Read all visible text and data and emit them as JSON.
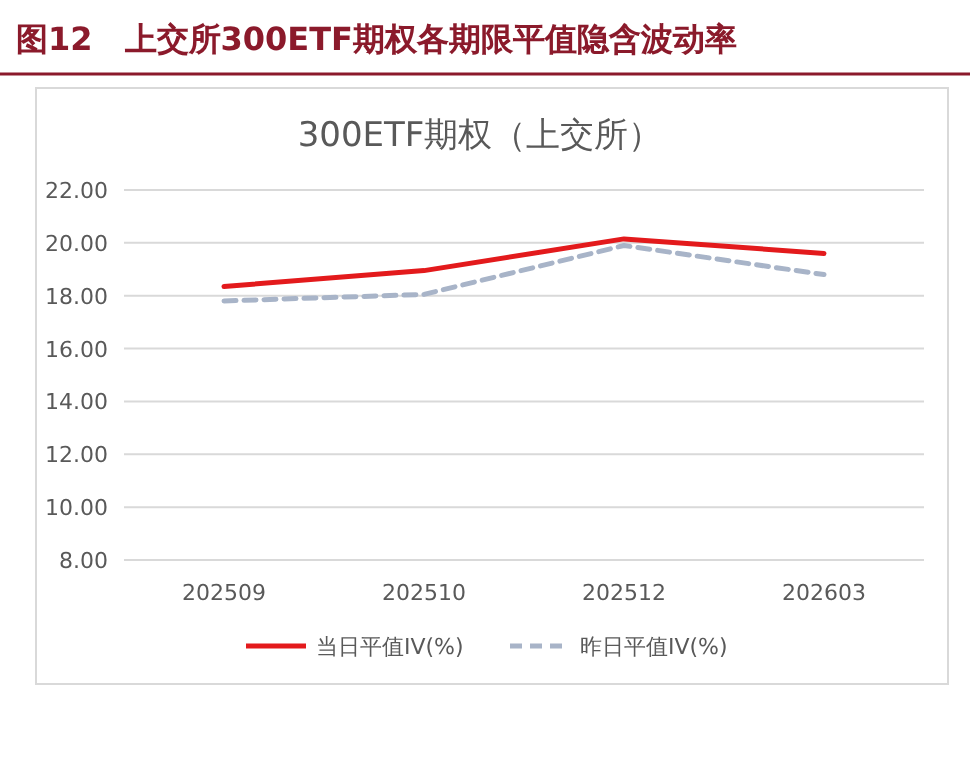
{
  "chart_data": {
    "type": "line",
    "title": "图12　上交所300ETF期权各期限平值隐含波动率",
    "subtitle": "300ETF期权（上交所）",
    "categories": [
      "202509",
      "202510",
      "202512",
      "202603"
    ],
    "series": [
      {
        "name": "当日平值IV(%)",
        "color": "#e31a1c",
        "values": [
          18.35,
          18.95,
          20.15,
          19.6
        ],
        "line_style": "solid"
      },
      {
        "name": "昨日平值IV(%)",
        "color": "#a8b4c8",
        "values": [
          17.8,
          18.05,
          19.9,
          18.8
        ],
        "line_style": "dashed"
      }
    ],
    "ylim": [
      8,
      22
    ],
    "yticks": [
      {
        "value": 8,
        "label": "8.00"
      },
      {
        "value": 10,
        "label": "10.00"
      },
      {
        "value": 12,
        "label": "12.00"
      },
      {
        "value": 14,
        "label": "14.00"
      },
      {
        "value": 16,
        "label": "16.00"
      },
      {
        "value": 18,
        "label": "18.00"
      },
      {
        "value": 20,
        "label": "20.00"
      },
      {
        "value": 22,
        "label": "22.00"
      }
    ],
    "grid": "y",
    "legend": "bottom",
    "marker": "none"
  }
}
